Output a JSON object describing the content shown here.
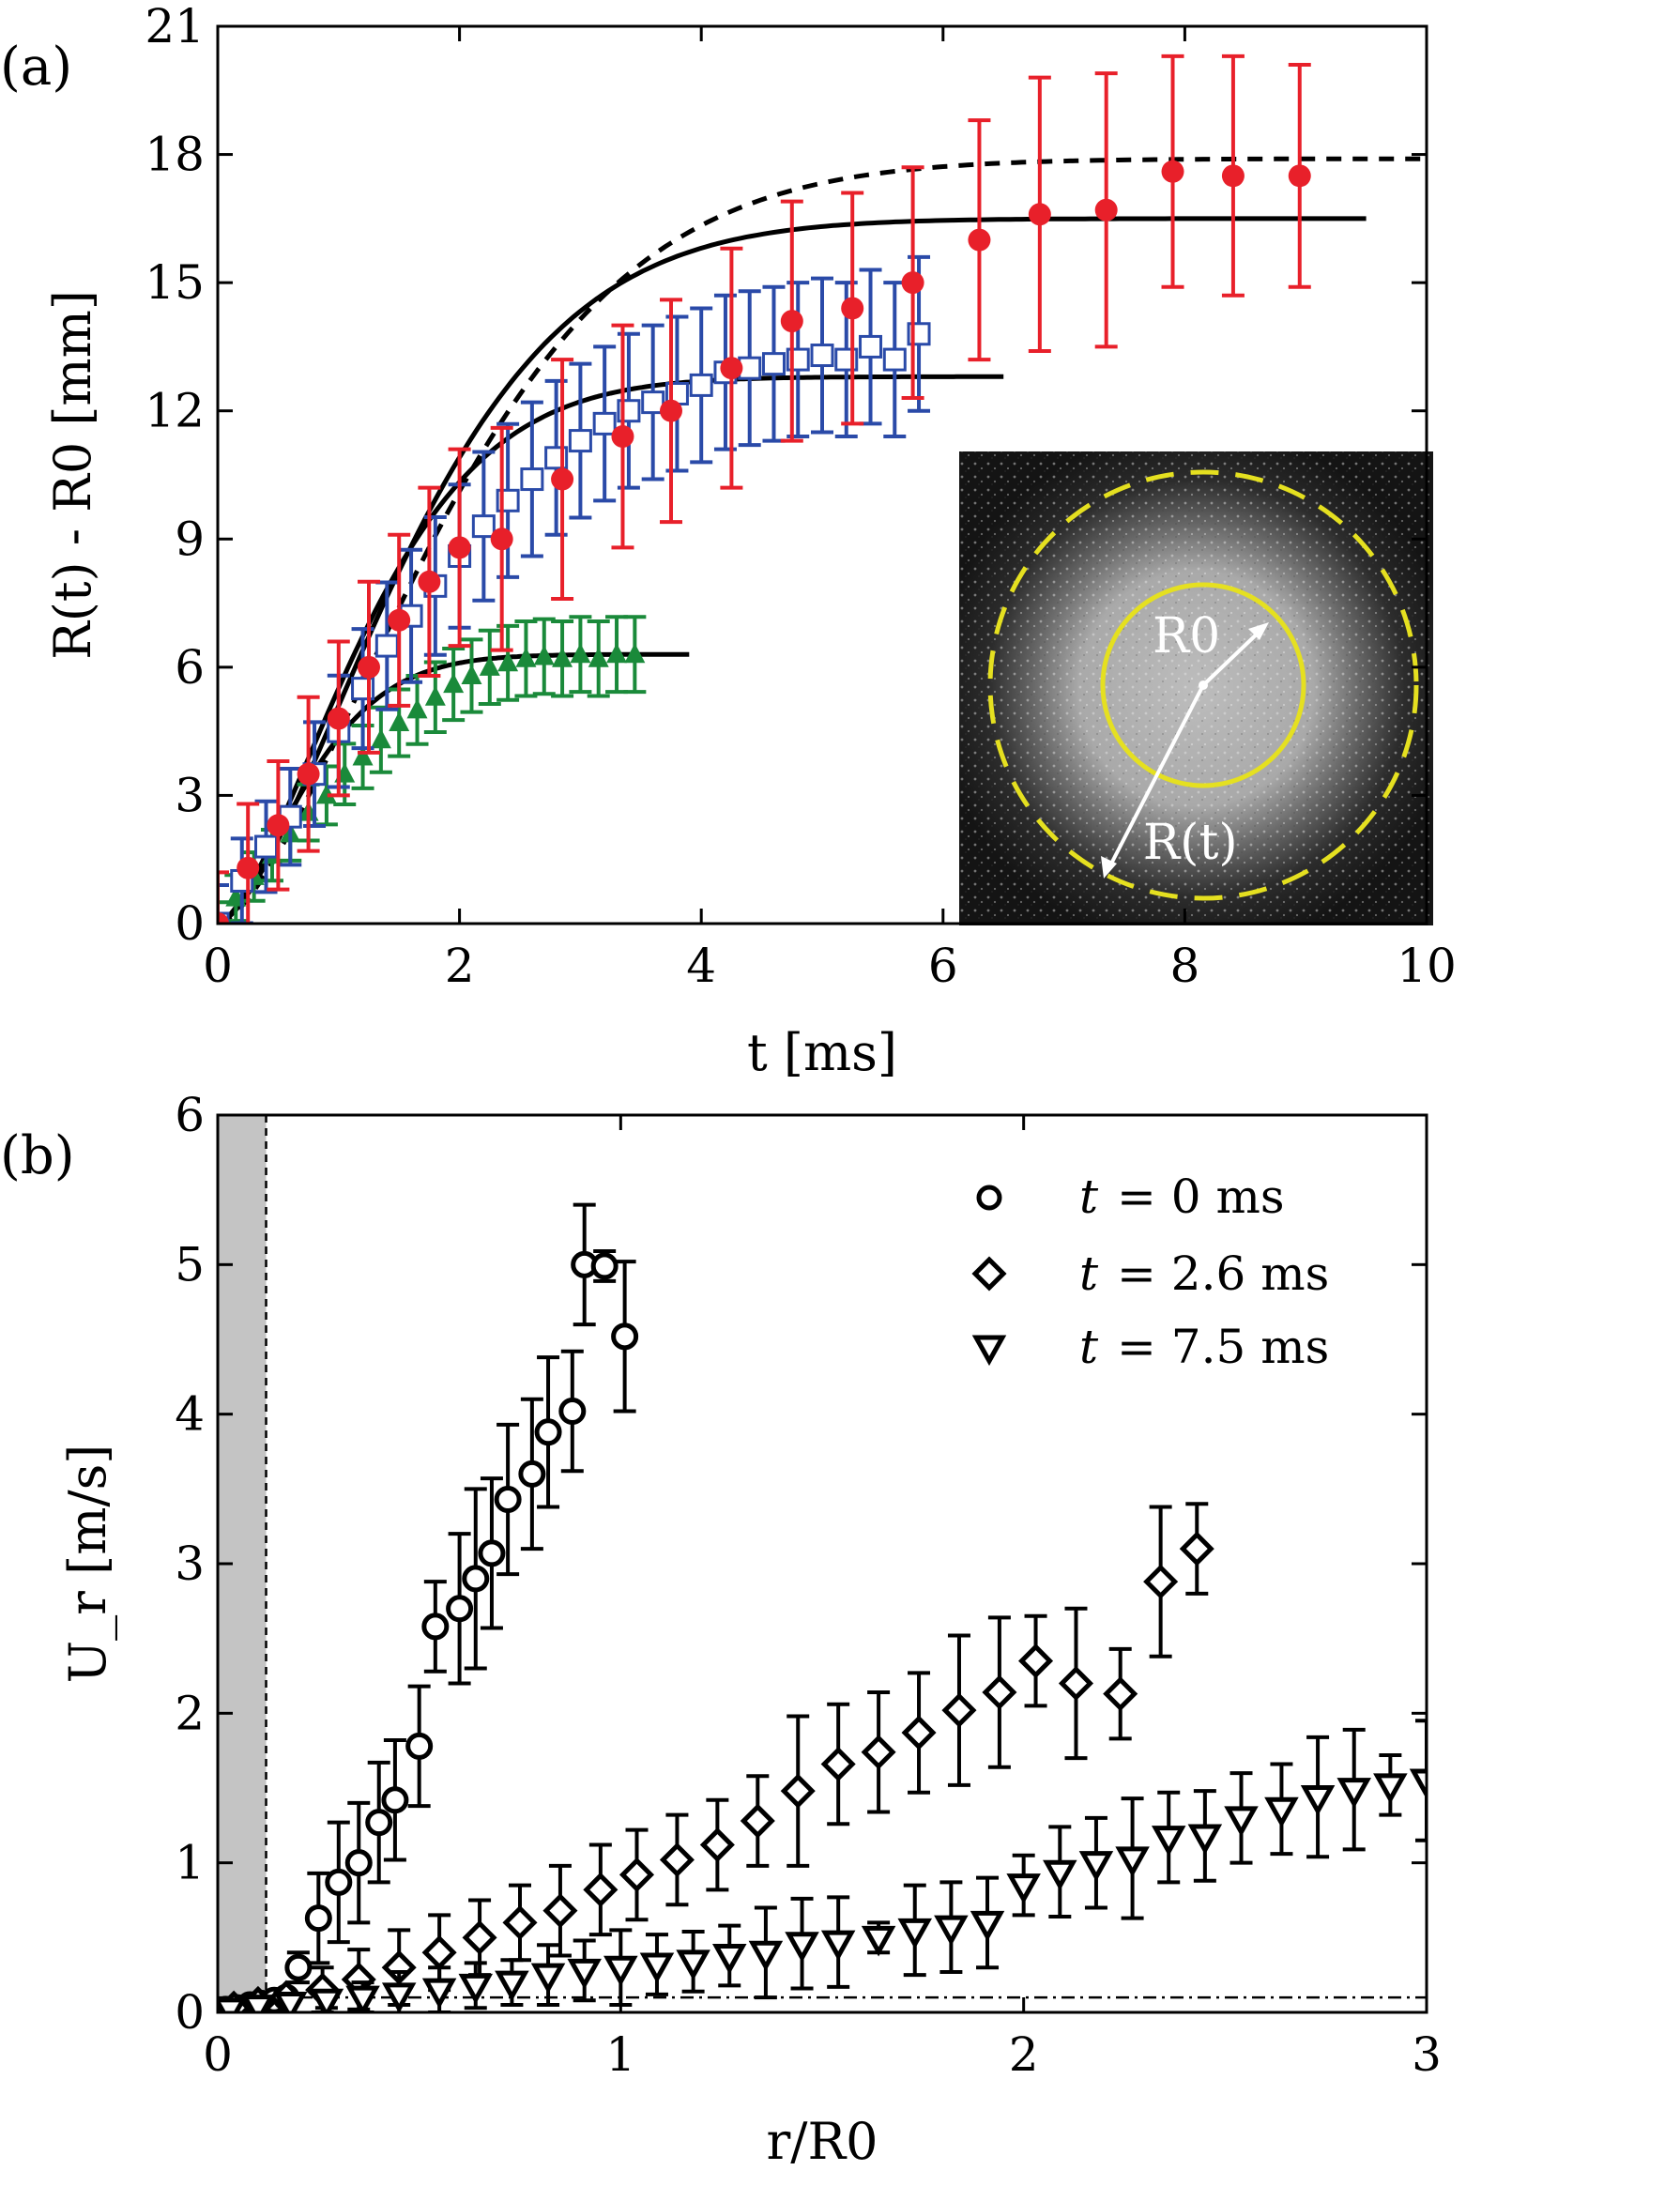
{
  "chart_data": [
    {
      "panel": "(a)",
      "type": "scatter",
      "xlabel": "t [ms]",
      "ylabel": "R(t) - R0 [mm]",
      "xlim": [
        0,
        10
      ],
      "ylim": [
        0,
        21
      ],
      "xticks": [
        0,
        2,
        4,
        6,
        8,
        10
      ],
      "yticks": [
        0,
        3,
        6,
        9,
        12,
        15,
        18,
        21
      ],
      "series": [
        {
          "name": "red filled circles",
          "marker": "filled-circle",
          "color": "#e8202a",
          "x": [
            0.0,
            0.25,
            0.5,
            0.75,
            1.0,
            1.25,
            1.5,
            1.75,
            2.0,
            2.35,
            2.85,
            3.35,
            3.75,
            4.25,
            4.75,
            5.25,
            5.75,
            6.3,
            6.8,
            7.35,
            7.9,
            8.4,
            8.95
          ],
          "y": [
            0.0,
            1.3,
            2.3,
            3.5,
            4.8,
            6.0,
            7.1,
            8.0,
            8.8,
            9.0,
            10.4,
            11.4,
            12.0,
            13.0,
            14.1,
            14.4,
            15.0,
            16.0,
            16.6,
            16.7,
            17.6,
            17.5,
            17.5
          ],
          "err": [
            1.2,
            1.5,
            1.5,
            1.8,
            1.8,
            2.0,
            2.0,
            2.2,
            2.3,
            2.6,
            2.8,
            2.6,
            2.6,
            2.8,
            2.8,
            2.7,
            2.7,
            2.8,
            3.2,
            3.2,
            2.7,
            2.8,
            2.6
          ]
        },
        {
          "name": "blue open squares",
          "marker": "open-square",
          "color": "#2a4aa8",
          "x": [
            0.0,
            0.2,
            0.4,
            0.6,
            0.8,
            1.0,
            1.2,
            1.4,
            1.6,
            1.8,
            2.0,
            2.2,
            2.4,
            2.6,
            2.8,
            3.0,
            3.2,
            3.4,
            3.6,
            3.8,
            4.0,
            4.2,
            4.4,
            4.6,
            4.8,
            5.0,
            5.2,
            5.4,
            5.6,
            5.8
          ],
          "y": [
            0.0,
            1.0,
            1.8,
            2.5,
            3.5,
            4.5,
            5.5,
            6.5,
            7.2,
            7.9,
            8.6,
            9.3,
            9.9,
            10.4,
            10.9,
            11.3,
            11.7,
            12.0,
            12.2,
            12.4,
            12.6,
            12.9,
            13.0,
            13.1,
            13.2,
            13.3,
            13.2,
            13.5,
            13.2,
            13.8
          ]
        },
        {
          "name": "green filled triangles",
          "marker": "filled-triangle",
          "color": "#1a8a3a",
          "x": [
            0.0,
            0.15,
            0.3,
            0.45,
            0.6,
            0.75,
            0.9,
            1.05,
            1.2,
            1.35,
            1.5,
            1.65,
            1.8,
            1.95,
            2.1,
            2.25,
            2.4,
            2.55,
            2.7,
            2.85,
            3.0,
            3.15,
            3.3,
            3.45
          ],
          "y": [
            0.0,
            0.6,
            1.1,
            1.6,
            2.1,
            2.6,
            3.0,
            3.5,
            3.9,
            4.3,
            4.7,
            5.0,
            5.3,
            5.6,
            5.8,
            6.0,
            6.1,
            6.2,
            6.25,
            6.2,
            6.3,
            6.2,
            6.3,
            6.3
          ]
        }
      ],
      "fit_curves": [
        {
          "name": "solid fit (red)",
          "style": "solid",
          "a": 16.5,
          "tau": 1.9,
          "x_max": 9.5
        },
        {
          "name": "dashed fit",
          "style": "dashed",
          "a": 17.9,
          "tau": 2.25,
          "x_max": 10.0
        },
        {
          "name": "solid fit (blue)",
          "style": "solid",
          "a": 12.8,
          "tau": 1.45,
          "x_max": 6.5
        },
        {
          "name": "solid fit (green)",
          "style": "solid",
          "a": 6.3,
          "tau": 0.9,
          "x_max": 3.9
        }
      ],
      "inset": {
        "labels": [
          "R0",
          "R(t)"
        ],
        "colors": {
          "inner_circle": "#e5e020",
          "outer_dashed_circle": "#e5e020",
          "arrows": "#ffffff",
          "background": "#2a2a2a"
        }
      }
    },
    {
      "panel": "(b)",
      "type": "scatter",
      "xlabel": "r/R0",
      "ylabel": "U_r [m/s]",
      "xlim": [
        0,
        3
      ],
      "ylim": [
        0,
        6
      ],
      "xticks": [
        0,
        1,
        2,
        3
      ],
      "yticks": [
        0,
        1,
        2,
        3,
        4,
        5,
        6
      ],
      "shaded_region": [
        0,
        0.12
      ],
      "vline_dashed": 0.12,
      "hline_dashdot": 0.1,
      "legend": [
        {
          "marker": "open-circle",
          "t": "t",
          "text": "= 0 ms"
        },
        {
          "marker": "open-diamond",
          "t": "t",
          "text": "= 2.6 ms"
        },
        {
          "marker": "open-triangle-down",
          "t": "t",
          "text": "= 7.5 ms"
        }
      ],
      "series": [
        {
          "name": "t = 0 ms",
          "marker": "open-circle",
          "x": [
            0.02,
            0.05,
            0.08,
            0.11,
            0.14,
            0.17,
            0.2,
            0.25,
            0.3,
            0.35,
            0.4,
            0.44,
            0.5,
            0.54,
            0.6,
            0.64,
            0.68,
            0.72,
            0.78,
            0.82,
            0.88,
            0.91,
            0.96,
            1.01
          ],
          "y": [
            0.02,
            0.03,
            0.05,
            0.06,
            0.08,
            0.1,
            0.3,
            0.63,
            0.87,
            1.0,
            1.27,
            1.42,
            1.78,
            2.58,
            2.7,
            2.9,
            3.07,
            3.43,
            3.6,
            3.88,
            4.02,
            5.0,
            4.99,
            4.52
          ],
          "err": [
            0.0,
            0.0,
            0.0,
            0.0,
            0.0,
            0.0,
            0.1,
            0.3,
            0.4,
            0.4,
            0.4,
            0.4,
            0.4,
            0.3,
            0.5,
            0.6,
            0.5,
            0.5,
            0.5,
            0.5,
            0.4,
            0.4,
            0.1,
            0.5
          ]
        },
        {
          "name": "t = 2.6 ms",
          "marker": "open-diamond",
          "x": [
            0.04,
            0.1,
            0.17,
            0.26,
            0.35,
            0.45,
            0.55,
            0.65,
            0.75,
            0.85,
            0.95,
            1.04,
            1.14,
            1.24,
            1.34,
            1.44,
            1.54,
            1.64,
            1.74,
            1.84,
            1.94,
            2.03,
            2.13,
            2.24,
            2.34,
            2.43
          ],
          "y": [
            0.03,
            0.06,
            0.1,
            0.15,
            0.22,
            0.3,
            0.4,
            0.5,
            0.6,
            0.68,
            0.82,
            0.92,
            1.02,
            1.12,
            1.28,
            1.48,
            1.66,
            1.74,
            1.87,
            2.02,
            2.14,
            2.35,
            2.2,
            2.13,
            2.88,
            3.1
          ],
          "err": [
            0.0,
            0.0,
            0.0,
            0.15,
            0.2,
            0.25,
            0.25,
            0.25,
            0.25,
            0.3,
            0.3,
            0.3,
            0.3,
            0.3,
            0.3,
            0.5,
            0.4,
            0.4,
            0.4,
            0.5,
            0.5,
            0.3,
            0.5,
            0.3,
            0.5,
            0.3
          ]
        },
        {
          "name": "t = 7.5 ms",
          "marker": "open-triangle-down",
          "x": [
            0.03,
            0.1,
            0.18,
            0.27,
            0.36,
            0.45,
            0.55,
            0.64,
            0.73,
            0.82,
            0.91,
            1.0,
            1.09,
            1.18,
            1.27,
            1.36,
            1.45,
            1.54,
            1.64,
            1.73,
            1.82,
            1.91,
            2.0,
            2.09,
            2.18,
            2.27,
            2.36,
            2.45,
            2.54,
            2.64,
            2.73,
            2.82,
            2.91,
            3.0
          ],
          "y": [
            0.02,
            0.04,
            0.06,
            0.08,
            0.1,
            0.12,
            0.15,
            0.18,
            0.2,
            0.25,
            0.28,
            0.3,
            0.32,
            0.34,
            0.38,
            0.4,
            0.46,
            0.47,
            0.5,
            0.55,
            0.57,
            0.6,
            0.85,
            0.94,
            1.0,
            1.03,
            1.17,
            1.18,
            1.3,
            1.36,
            1.44,
            1.49,
            1.52,
            1.55
          ],
          "err": [
            0.0,
            0.0,
            0.0,
            0.05,
            0.1,
            0.15,
            0.15,
            0.15,
            0.15,
            0.2,
            0.2,
            0.25,
            0.2,
            0.2,
            0.2,
            0.3,
            0.3,
            0.3,
            0.1,
            0.3,
            0.3,
            0.3,
            0.2,
            0.3,
            0.3,
            0.4,
            0.3,
            0.3,
            0.3,
            0.3,
            0.4,
            0.4,
            0.2,
            0.4
          ]
        }
      ]
    }
  ]
}
